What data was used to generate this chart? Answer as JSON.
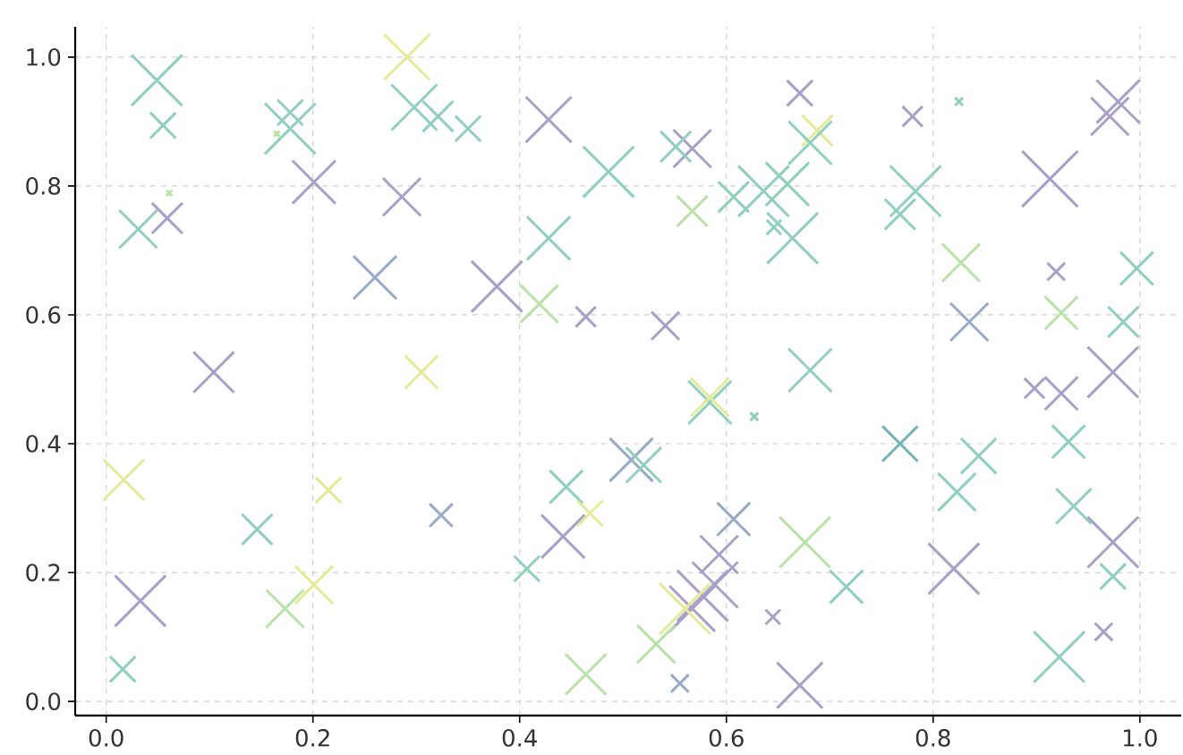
{
  "chart_data": {
    "type": "bubble",
    "marker": "cross",
    "grid": true,
    "xlim": [
      -0.03,
      1.04
    ],
    "ylim": [
      -0.022,
      1.047
    ],
    "xticks": [
      {
        "value": 0,
        "label": "0.0"
      },
      {
        "value": 0.2,
        "label": "0.2"
      },
      {
        "value": 0.4,
        "label": "0.4"
      },
      {
        "value": 0.6,
        "label": "0.6"
      },
      {
        "value": 0.8,
        "label": "0.8"
      },
      {
        "value": 1,
        "label": "1.0"
      }
    ],
    "yticks": [
      {
        "value": 0,
        "label": "0.0"
      },
      {
        "value": 0.2,
        "label": "0.2"
      },
      {
        "value": 0.4,
        "label": "0.4"
      },
      {
        "value": 0.6,
        "label": "0.6"
      },
      {
        "value": 0.8,
        "label": "0.8"
      },
      {
        "value": 1,
        "label": "1.0"
      }
    ],
    "series": [
      {
        "x": [
          0.049,
          0.055,
          0.061,
          0.059,
          0.031,
          0.178,
          0.178,
          0.165,
          0.201,
          0.26,
          0.286,
          0.291,
          0.298,
          0.321,
          0.35,
          0.305,
          0.104,
          0.017,
          0.215,
          0.146,
          0.033,
          0.016,
          0.173,
          0.201,
          0.324,
          0.428,
          0.486,
          0.428,
          0.378,
          0.419,
          0.464,
          0.541,
          0.567,
          0.551,
          0.567,
          0.671,
          0.688,
          0.681,
          0.78,
          0.825,
          0.783,
          0.768,
          0.913,
          0.979,
          0.971,
          0.827,
          0.919,
          0.997,
          0.835,
          0.924,
          0.984,
          0.681,
          0.659,
          0.664,
          0.646,
          0.636,
          0.607,
          0.584,
          0.584,
          0.627,
          0.508,
          0.52,
          0.445,
          0.442,
          0.468,
          0.407,
          0.607,
          0.593,
          0.577,
          0.589,
          0.567,
          0.56,
          0.532,
          0.645,
          0.555,
          0.464,
          0.676,
          0.671,
          0.768,
          0.844,
          0.823,
          0.716,
          0.82,
          0.922,
          0.965,
          0.974,
          0.974,
          0.936,
          0.898,
          0.924,
          0.931,
          0.974
        ],
        "values": [
          0.964,
          0.894,
          0.789,
          0.75,
          0.733,
          0.914,
          0.889,
          0.881,
          0.806,
          0.658,
          0.783,
          1.0,
          0.922,
          0.908,
          0.889,
          0.511,
          0.511,
          0.344,
          0.328,
          0.267,
          0.156,
          0.05,
          0.144,
          0.181,
          0.289,
          0.903,
          0.822,
          0.719,
          0.644,
          0.617,
          0.597,
          0.583,
          0.858,
          0.861,
          0.761,
          0.944,
          0.886,
          0.867,
          0.908,
          0.931,
          0.792,
          0.756,
          0.811,
          0.931,
          0.908,
          0.681,
          0.667,
          0.672,
          0.589,
          0.603,
          0.589,
          0.514,
          0.803,
          0.719,
          0.736,
          0.792,
          0.783,
          0.464,
          0.472,
          0.442,
          0.375,
          0.367,
          0.333,
          0.256,
          0.292,
          0.206,
          0.283,
          0.228,
          0.164,
          0.181,
          0.144,
          0.144,
          0.089,
          0.131,
          0.028,
          0.042,
          0.247,
          0.025,
          0.4,
          0.381,
          0.325,
          0.178,
          0.206,
          0.069,
          0.108,
          0.247,
          0.194,
          0.303,
          0.486,
          0.478,
          0.403,
          0.511
        ],
        "sizes": [
          0.83,
          0.21,
          0.01,
          0.3,
          0.46,
          0.21,
          0.83,
          0.01,
          0.6,
          0.6,
          0.46,
          0.67,
          0.67,
          0.3,
          0.21,
          0.35,
          0.53,
          0.53,
          0.21,
          0.3,
          0.83,
          0.21,
          0.46,
          0.46,
          0.17,
          0.67,
          0.83,
          0.6,
          0.83,
          0.46,
          0.13,
          0.25,
          0.46,
          0.3,
          0.3,
          0.21,
          0.3,
          0.6,
          0.13,
          0.02,
          0.83,
          0.3,
          1,
          0.6,
          0.46,
          0.46,
          0.1,
          0.35,
          0.46,
          0.35,
          0.3,
          0.6,
          0.6,
          0.83,
          0.07,
          0.83,
          0.3,
          0.6,
          0.46,
          0.02,
          0.6,
          0.4,
          0.35,
          0.6,
          0.21,
          0.21,
          0.35,
          0.46,
          0.83,
          0.67,
          0.67,
          0.83,
          0.46,
          0.07,
          0.1,
          0.53,
          0.83,
          0.67,
          0.4,
          0.4,
          0.46,
          0.35,
          0.83,
          0.83,
          0.1,
          0.83,
          0.21,
          0.4,
          0.13,
          0.35,
          0.35,
          0.83
        ],
        "colors": [
          "#90cfbe",
          "#90cfbe",
          "#b8e2a6",
          "#a8a0c8",
          "#90cfbe",
          "#90cfbe",
          "#90cfbe",
          "#b8e2a6",
          "#a8a0c8",
          "#98aac6",
          "#a8a0c8",
          "#e4eb98",
          "#90cfbe",
          "#90cfbe",
          "#90cfbe",
          "#e4eb98",
          "#a8a0c8",
          "#e4eb98",
          "#e4eb98",
          "#90cfbe",
          "#a8a0c8",
          "#90cfbe",
          "#b8e2a6",
          "#e4eb98",
          "#98aac6",
          "#a8a0c8",
          "#90cfbe",
          "#90cfbe",
          "#a8a0c8",
          "#b8e2a6",
          "#a8a0c8",
          "#a8a0c8",
          "#a8a0c8",
          "#90cfbe",
          "#b8e2a6",
          "#a8a0c8",
          "#e4eb98",
          "#90cfbe",
          "#a8a0c8",
          "#90cfbe",
          "#90cfbe",
          "#90cfbe",
          "#a8a0c8",
          "#a8a0c8",
          "#a8a0c8",
          "#b8e2a6",
          "#a8a0c8",
          "#90cfbe",
          "#98aac6",
          "#b8e2a6",
          "#90cfbe",
          "#90cfbe",
          "#90cfbe",
          "#90cfbe",
          "#90cfbe",
          "#90cfbe",
          "#90cfbe",
          "#90cfbe",
          "#e4eb98",
          "#90cfbe",
          "#98aac6",
          "#90cfbe",
          "#90cfbe",
          "#a8a0c8",
          "#e4eb98",
          "#90cfbe",
          "#98aac6",
          "#a8a0c8",
          "#a8a0c8",
          "#a8a0c8",
          "#a8a0c8",
          "#e4eb98",
          "#b8e2a6",
          "#a8a0c8",
          "#98aac6",
          "#b8e2a6",
          "#b8e2a6",
          "#a8a0c8",
          "#74b4b4",
          "#90cfbe",
          "#90cfbe",
          "#90cfbe",
          "#a8a0c8",
          "#90cfbe",
          "#a8a0c8",
          "#a8a0c8",
          "#90cfbe",
          "#90cfbe",
          "#a8a0c8",
          "#a8a0c8",
          "#90cfbe",
          "#a8a0c8"
        ]
      }
    ]
  }
}
